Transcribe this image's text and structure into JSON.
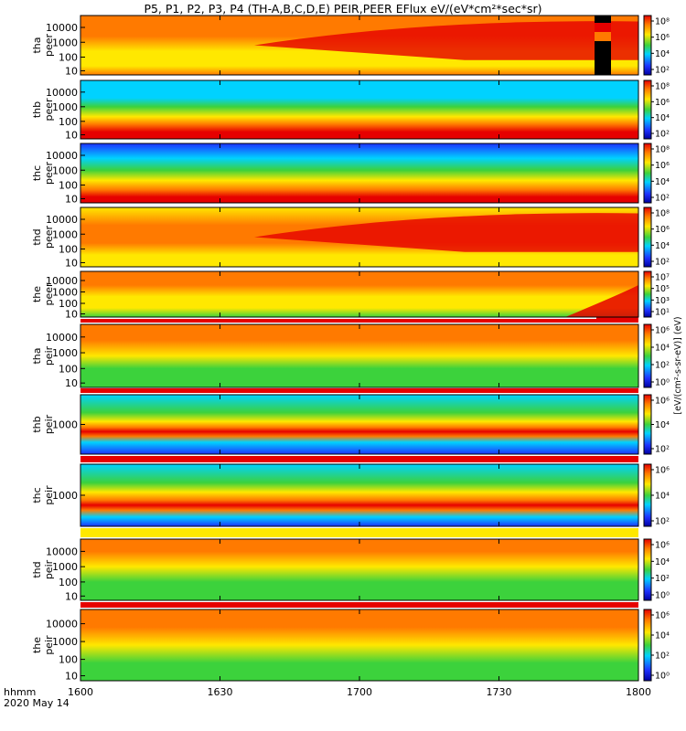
{
  "title": "P5, P1, P2, P3, P4 (TH-A,B,C,D,E) PEIR,PEER EFlux eV/(eV*cm²*sec*sr)",
  "x_label_line1": "hhmm",
  "x_label_line2": "2020 May 14",
  "colorbar_unit": "[eV/(cm²-s-sr-eV)] (eV)",
  "colors": {
    "red": "#e60000",
    "orange": "#ff7a00",
    "yellow": "#ffe800",
    "green": "#3cd23c",
    "cyan": "#00d2ff",
    "blue": "#1e32ff",
    "navy": "#0000a0",
    "black": "#000000"
  },
  "chart_data": {
    "type": "heatmap",
    "x_ticks": [
      "1600",
      "1630",
      "1700",
      "1730",
      "1800"
    ],
    "xlim": [
      "1600",
      "1800"
    ],
    "panels": [
      {
        "name": "tha peer",
        "label1": "tha",
        "label2": "peer",
        "y_ticks": [
          "10",
          "100",
          "1000",
          "10000"
        ],
        "y_scale": "log",
        "colorbar_ticks": [
          "10²",
          "10⁴",
          "10⁶",
          "10⁸"
        ]
      },
      {
        "name": "thb peer",
        "label1": "thb",
        "label2": "peer",
        "y_ticks": [
          "10",
          "100",
          "1000",
          "10000"
        ],
        "y_scale": "log",
        "colorbar_ticks": [
          "10²",
          "10⁴",
          "10⁶",
          "10⁸"
        ]
      },
      {
        "name": "thc peer",
        "label1": "thc",
        "label2": "peer",
        "y_ticks": [
          "10",
          "100",
          "1000",
          "10000"
        ],
        "y_scale": "log",
        "colorbar_ticks": [
          "10²",
          "10⁴",
          "10⁶",
          "10⁸"
        ]
      },
      {
        "name": "thd peer",
        "label1": "thd",
        "label2": "peer",
        "y_ticks": [
          "10",
          "100",
          "1000",
          "10000"
        ],
        "y_scale": "log",
        "colorbar_ticks": [
          "10²",
          "10⁴",
          "10⁶",
          "10⁸"
        ]
      },
      {
        "name": "the peer",
        "label1": "the",
        "label2": "peer",
        "y_ticks": [
          "10",
          "100",
          "1000",
          "10000"
        ],
        "y_scale": "log",
        "colorbar_ticks": [
          "10¹",
          "10³",
          "10⁵",
          "10⁷"
        ]
      },
      {
        "name": "tha peir",
        "label1": "tha",
        "label2": "peir",
        "y_ticks": [
          "10",
          "100",
          "1000",
          "10000"
        ],
        "y_scale": "log",
        "colorbar_ticks": [
          "10⁰",
          "10²",
          "10⁴",
          "10⁶"
        ]
      },
      {
        "name": "thb peir",
        "label1": "thb",
        "label2": "peir",
        "y_ticks": [
          "1000"
        ],
        "y_scale": "log",
        "colorbar_ticks": [
          "10²",
          "10⁴",
          "10⁶"
        ]
      },
      {
        "name": "thc peir",
        "label1": "thc",
        "label2": "peir",
        "y_ticks": [
          "1000"
        ],
        "y_scale": "log",
        "colorbar_ticks": [
          "10²",
          "10⁴",
          "10⁶"
        ]
      },
      {
        "name": "thd peir",
        "label1": "thd",
        "label2": "peir",
        "y_ticks": [
          "10",
          "100",
          "1000",
          "10000"
        ],
        "y_scale": "log",
        "colorbar_ticks": [
          "10⁰",
          "10²",
          "10⁴",
          "10⁶"
        ]
      },
      {
        "name": "the peir",
        "label1": "the",
        "label2": "peir",
        "y_ticks": [
          "10",
          "100",
          "1000",
          "10000"
        ],
        "y_scale": "log",
        "colorbar_ticks": [
          "10⁰",
          "10²",
          "10⁴",
          "10⁶"
        ]
      }
    ]
  }
}
